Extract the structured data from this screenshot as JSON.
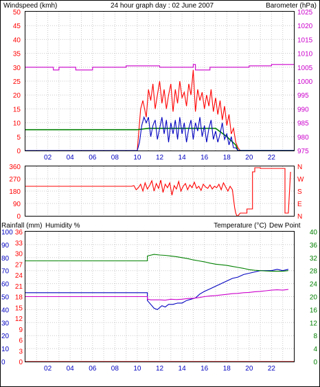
{
  "colors": {
    "wind": "#ff0000",
    "gust": "#ff0000",
    "avg_wind": "#008000",
    "wind_line": "#0000c0",
    "baro": "#cc00cc",
    "wind_dir": "#ff0000",
    "rain": "#ff0000",
    "humidity": "#0000c0",
    "temperature": "#008000",
    "dew_point": "#cc00cc",
    "grid": "#c8c8c8",
    "frame": "#000000"
  },
  "chart_data": [
    {
      "type": "line",
      "title": "24 hour graph day : 02 June 2007",
      "ylabel_left": "Windspeed (kmh)",
      "ylabel_right": "Barometer (hPa)",
      "xlim": [
        0,
        24
      ],
      "x_ticks": [
        "02",
        "04",
        "06",
        "08",
        "10",
        "12",
        "14",
        "16",
        "18",
        "20",
        "22"
      ],
      "x_tick_values": [
        2,
        4,
        6,
        8,
        10,
        12,
        14,
        16,
        18,
        20,
        22
      ],
      "ylim_left": [
        0,
        50
      ],
      "y_ticks_left": [
        "0",
        "5",
        "10",
        "15",
        "20",
        "25",
        "30",
        "35",
        "40",
        "45",
        "50"
      ],
      "ylim_right": [
        975,
        1025
      ],
      "y_ticks_right": [
        "975",
        "980",
        "985",
        "990",
        "995",
        "1000",
        "1005",
        "1010",
        "1015",
        "1020",
        "1025"
      ],
      "grid": true,
      "series": [
        {
          "name": "Windspeed (kmh)",
          "axis": "left",
          "style": "gust",
          "x": [
            0,
            10.0,
            10.3,
            10.5,
            10.8,
            11.0,
            11.2,
            11.4,
            11.6,
            11.8,
            12.0,
            12.2,
            12.4,
            12.6,
            12.8,
            13.0,
            13.2,
            13.4,
            13.6,
            13.8,
            14.0,
            14.2,
            14.4,
            14.6,
            14.8,
            15.0,
            15.2,
            15.4,
            15.6,
            15.8,
            16.0,
            16.2,
            16.4,
            16.6,
            16.8,
            17.0,
            17.2,
            17.4,
            17.6,
            17.8,
            18.0,
            18.2,
            18.4,
            18.6,
            18.8,
            19.0,
            19.2,
            24
          ],
          "y": [
            0,
            0,
            15,
            18,
            12,
            22,
            18,
            24,
            15,
            20,
            25,
            17,
            22,
            15,
            20,
            24,
            14,
            22,
            17,
            25,
            19,
            21,
            16,
            24,
            20,
            29,
            14,
            22,
            18,
            21,
            15,
            20,
            16,
            22,
            14,
            19,
            13,
            18,
            11,
            16,
            9,
            13,
            6,
            8,
            3,
            1,
            0,
            0
          ]
        },
        {
          "name": "Average windspeed",
          "axis": "left",
          "style": "average",
          "x": [
            0,
            10.0,
            11.0,
            12.0,
            13.0,
            14.0,
            15.0,
            16.0,
            17.0,
            18.0,
            18.8,
            19.0,
            24
          ],
          "y": [
            7.5,
            7.5,
            8,
            8,
            8,
            8,
            8,
            8,
            8,
            5,
            2,
            0,
            0
          ]
        },
        {
          "name": "Windspeed",
          "axis": "left",
          "style": "detail",
          "x": [
            0,
            10.0,
            10.2,
            10.4,
            10.6,
            10.8,
            11.0,
            11.2,
            11.4,
            11.6,
            11.8,
            12.0,
            12.2,
            12.4,
            12.6,
            12.8,
            13.0,
            13.2,
            13.4,
            13.6,
            13.8,
            14.0,
            14.2,
            14.4,
            14.6,
            14.8,
            15.0,
            15.2,
            15.4,
            15.6,
            15.8,
            16.0,
            16.2,
            16.4,
            16.6,
            16.8,
            17.0,
            17.2,
            17.4,
            17.6,
            17.8,
            18.0,
            18.2,
            18.4,
            18.6,
            18.8,
            19.0,
            24
          ],
          "y": [
            0,
            0,
            3,
            9,
            12,
            10,
            12,
            5,
            9,
            11,
            4,
            8,
            12,
            6,
            11,
            3,
            10,
            6,
            11,
            4,
            12,
            6,
            10,
            3,
            8,
            11,
            4,
            10,
            7,
            12,
            5,
            9,
            3,
            8,
            11,
            4,
            7,
            3,
            6,
            10,
            4,
            6,
            2,
            5,
            1,
            1,
            0,
            0
          ]
        },
        {
          "name": "Barometer (hPa)",
          "axis": "right",
          "style": "pressure",
          "x": [
            0,
            2.5,
            2.5,
            3.0,
            3.0,
            4.5,
            4.5,
            6.0,
            6.0,
            7.5,
            7.5,
            9.0,
            9.0,
            10.5,
            10.5,
            12.0,
            12.0,
            13.5,
            13.5,
            15.0,
            15.0,
            15.2,
            15.2,
            16.5,
            16.5,
            18.0,
            18.0,
            20.0,
            20.0,
            22.0,
            22.0,
            24
          ],
          "y": [
            1005,
            1005,
            1004,
            1004,
            1005,
            1005,
            1004,
            1004,
            1005,
            1005,
            1005,
            1005,
            1005.5,
            1005.5,
            1005.5,
            1005.5,
            1005,
            1005,
            1005,
            1005,
            1006,
            1006,
            1004,
            1004,
            1005,
            1005,
            1005,
            1005,
            1005.5,
            1005.5,
            1006,
            1006
          ]
        }
      ]
    },
    {
      "type": "line",
      "title": "",
      "ylabel_left": "",
      "xlim": [
        0,
        24
      ],
      "ylim_left": [
        0,
        360
      ],
      "y_ticks_left": [
        "0",
        "90",
        "180",
        "270",
        "360"
      ],
      "y_ticks_right": [
        "N",
        "E",
        "S",
        "W",
        "N"
      ],
      "y_ticks_right_order": "bottom-to-top",
      "grid": true,
      "series": [
        {
          "name": "Wind direction",
          "axis": "left",
          "style": "direction",
          "x": [
            0,
            9.5,
            9.7,
            9.9,
            10.1,
            10.3,
            10.5,
            10.7,
            10.9,
            11.1,
            11.3,
            11.5,
            11.7,
            11.9,
            12.1,
            12.3,
            12.5,
            12.7,
            12.9,
            13.1,
            13.3,
            13.5,
            13.7,
            13.9,
            14.1,
            14.3,
            14.5,
            14.7,
            14.9,
            15.1,
            15.3,
            15.5,
            15.7,
            15.9,
            16.1,
            16.3,
            16.5,
            16.7,
            16.9,
            17.1,
            17.3,
            17.5,
            17.7,
            17.9,
            18.1,
            18.3,
            18.5,
            18.7,
            18.8,
            18.9,
            19.0,
            19.2,
            19.5,
            19.8,
            19.8,
            20.3,
            20.3,
            20.5,
            20.5,
            21.0,
            21.0,
            23.0,
            23.0,
            23.2,
            23.2,
            23.5,
            23.7
          ],
          "y": [
            215,
            215,
            220,
            190,
            205,
            230,
            180,
            240,
            195,
            220,
            255,
            180,
            235,
            200,
            260,
            170,
            230,
            205,
            240,
            150,
            220,
            195,
            250,
            180,
            215,
            235,
            190,
            225,
            205,
            245,
            200,
            215,
            185,
            230,
            210,
            200,
            225,
            195,
            215,
            205,
            230,
            190,
            240,
            210,
            180,
            215,
            190,
            60,
            20,
            0,
            0,
            20,
            20,
            20,
            50,
            50,
            320,
            320,
            350,
            350,
            345,
            345,
            345,
            345,
            20,
            20,
            320
          ]
        }
      ]
    },
    {
      "type": "line",
      "title": "",
      "ylabel_left": "Rainfall (mm)",
      "ylabel_left_2": "Humidity %",
      "ylabel_right": "Temperature (°C)",
      "ylabel_right_2": "Dew Point",
      "xlim": [
        0,
        24
      ],
      "x_ticks": [
        "02",
        "04",
        "06",
        "08",
        "10",
        "12",
        "14",
        "16",
        "18",
        "20",
        "22"
      ],
      "x_tick_values": [
        2,
        4,
        6,
        8,
        10,
        12,
        14,
        16,
        18,
        20,
        22
      ],
      "ylim_rain": [
        0,
        36
      ],
      "y_ticks_rain": [
        "0",
        "3",
        "6",
        "9",
        "12",
        "15",
        "18",
        "21",
        "24",
        "27",
        "30",
        "33",
        "36"
      ],
      "ylim_humidity": [
        0,
        100
      ],
      "y_ticks_humidity": [
        "0",
        "10",
        "20",
        "30",
        "40",
        "50",
        "60",
        "70",
        "80",
        "90",
        "100"
      ],
      "ylim_right": [
        0,
        40
      ],
      "y_ticks_right": [
        "0",
        "4",
        "8",
        "12",
        "16",
        "20",
        "24",
        "28",
        "32",
        "36",
        "40"
      ],
      "grid": true,
      "series": [
        {
          "name": "Rainfall (mm)",
          "axis": "rain",
          "style": "rain",
          "x": [
            0,
            24
          ],
          "y": [
            0,
            0
          ]
        },
        {
          "name": "Humidity %",
          "axis": "humidity",
          "style": "humidity",
          "x": [
            0,
            10.9,
            10.9,
            11.2,
            11.5,
            11.8,
            12.2,
            12.5,
            12.8,
            13.2,
            13.6,
            14.0,
            14.4,
            14.8,
            15.2,
            15.6,
            16.0,
            16.5,
            17.0,
            17.5,
            18.0,
            18.5,
            19.0,
            19.5,
            20.0,
            20.5,
            21.0,
            21.5,
            22.0,
            22.5,
            23.0,
            23.5
          ],
          "y": [
            53,
            53,
            47,
            44,
            41,
            40,
            43,
            42,
            44,
            44,
            45,
            45,
            47,
            48,
            49,
            52,
            54,
            56,
            58,
            60,
            62,
            64,
            65,
            67,
            68,
            69,
            70,
            70,
            70,
            71,
            70,
            71
          ]
        },
        {
          "name": "Temperature (°C)",
          "axis": "right",
          "style": "temperature",
          "x": [
            0,
            10.9,
            10.9,
            11.5,
            12.0,
            12.5,
            13.0,
            13.5,
            14.0,
            14.5,
            15.0,
            15.5,
            16.0,
            16.5,
            17.0,
            17.5,
            18.0,
            18.5,
            19.0,
            19.5,
            20.0,
            20.5,
            21.0,
            21.5,
            22.0,
            22.5,
            23.0,
            23.5
          ],
          "y": [
            31,
            31,
            32.5,
            33,
            32.8,
            32.7,
            32.5,
            32.3,
            32,
            31.7,
            31.3,
            31,
            30.7,
            30.3,
            30,
            29.8,
            29.6,
            29.3,
            29,
            28.7,
            28.3,
            28.1,
            28,
            27.9,
            27.8,
            27.8,
            27.8,
            28
          ]
        },
        {
          "name": "Dew Point",
          "axis": "right",
          "style": "dewpoint",
          "x": [
            0,
            10.9,
            10.9,
            11.2,
            11.6,
            12.0,
            12.5,
            13.0,
            13.5,
            14.0,
            14.5,
            15.0,
            15.5,
            16.0,
            16.5,
            17.0,
            17.5,
            18.0,
            18.5,
            19.0,
            19.5,
            20.0,
            20.5,
            21.0,
            21.5,
            22.0,
            22.5,
            23.0,
            23.5
          ],
          "y": [
            20,
            20,
            19.2,
            19,
            19,
            19,
            18.9,
            19.2,
            19.1,
            19.2,
            19.4,
            19.5,
            19.7,
            20,
            20.2,
            20.3,
            20.5,
            20.7,
            20.9,
            21,
            21.2,
            21.3,
            21.5,
            21.6,
            21.8,
            22,
            22.1,
            22,
            22.2
          ]
        }
      ]
    }
  ]
}
